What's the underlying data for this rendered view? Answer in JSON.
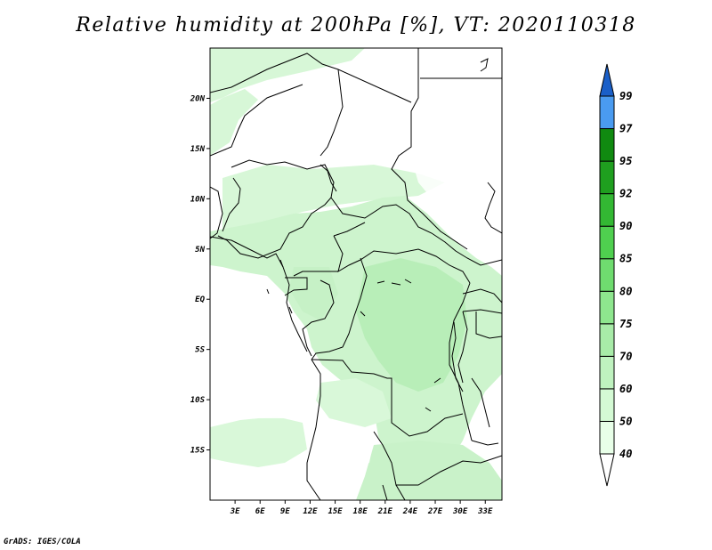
{
  "title": "Relative humidity at 200hPa [%], VT: 2020110318",
  "credit": "GrADS: IGES/COLA",
  "map": {
    "lon_range": [
      0,
      35
    ],
    "lat_range": [
      -20,
      25
    ],
    "lat_ticks": [
      {
        "lat": 20,
        "label": "20N"
      },
      {
        "lat": 15,
        "label": "15N"
      },
      {
        "lat": 10,
        "label": "10N"
      },
      {
        "lat": 5,
        "label": "5N"
      },
      {
        "lat": 0,
        "label": "EQ"
      },
      {
        "lat": -5,
        "label": "5S"
      },
      {
        "lat": -10,
        "label": "10S"
      },
      {
        "lat": -15,
        "label": "15S"
      }
    ],
    "lon_ticks": [
      {
        "lon": 3,
        "label": "3E"
      },
      {
        "lon": 6,
        "label": "6E"
      },
      {
        "lon": 9,
        "label": "9E"
      },
      {
        "lon": 12,
        "label": "12E"
      },
      {
        "lon": 15,
        "label": "15E"
      },
      {
        "lon": 18,
        "label": "18E"
      },
      {
        "lon": 21,
        "label": "21E"
      },
      {
        "lon": 24,
        "label": "24E"
      },
      {
        "lon": 27,
        "label": "27E"
      },
      {
        "lon": 30,
        "label": "30E"
      },
      {
        "lon": 33,
        "label": "33E"
      }
    ]
  },
  "colorbar": {
    "levels": [
      {
        "label": "40",
        "color": "#e8ffe8"
      },
      {
        "label": "50",
        "color": "#d4fad4"
      },
      {
        "label": "60",
        "color": "#bff2bf"
      },
      {
        "label": "70",
        "color": "#a8eba8"
      },
      {
        "label": "75",
        "color": "#8ee68e"
      },
      {
        "label": "80",
        "color": "#6fdc6f"
      },
      {
        "label": "85",
        "color": "#4fcf4f"
      },
      {
        "label": "90",
        "color": "#33b833"
      },
      {
        "label": "92",
        "color": "#1f9f1f"
      },
      {
        "label": "95",
        "color": "#108a10"
      },
      {
        "label": "97",
        "color": "#4a9bf0"
      },
      {
        "label": "99",
        "color": "#2274dc"
      }
    ],
    "bottom_color": "#ffffff",
    "top_color": "#1a5fc8"
  }
}
